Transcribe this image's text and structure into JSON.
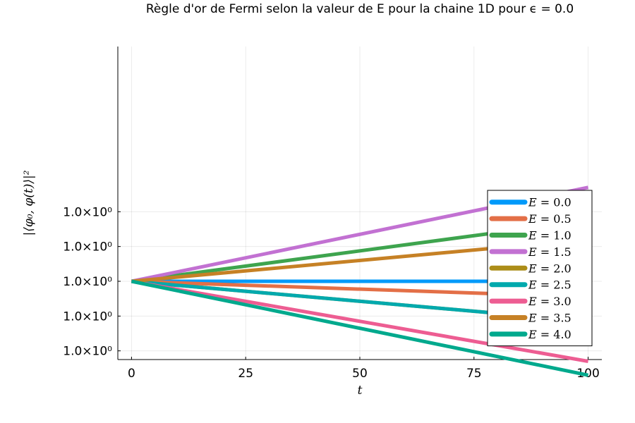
{
  "chart_data": {
    "type": "line",
    "title": "Règle d'or de Fermi selon la valeur de E pour la chaine 1D pour ϵ = 0.0",
    "xlabel": "t",
    "ylabel": "|⟨φ₀, φ(t)⟩|²",
    "xlim": [
      -3,
      103
    ],
    "ylim": [
      0.955,
      1.135
    ],
    "x_ticks": [
      0,
      25,
      50,
      75,
      100
    ],
    "y_ticks": [
      0.96,
      0.98,
      1.0,
      1.02,
      1.04
    ],
    "y_tick_labels": [
      "1.0×10⁰",
      "1.0×10⁰",
      "1.0×10⁰",
      "1.0×10⁰",
      "1.0×10⁰"
    ],
    "grid": true,
    "legend_position": "bottom-right",
    "series": [
      {
        "name": "E = 0.0",
        "color": "#009AFA",
        "x": [
          0,
          100
        ],
        "y": [
          1.0,
          1.0
        ]
      },
      {
        "name": "E = 0.5",
        "color": "#E36F47",
        "x": [
          0,
          100
        ],
        "y": [
          1.0,
          0.991
        ]
      },
      {
        "name": "E = 1.0",
        "color": "#3EA44E",
        "x": [
          0,
          100
        ],
        "y": [
          1.0,
          1.035
        ]
      },
      {
        "name": "E = 1.5",
        "color": "#C271D2",
        "x": [
          0,
          100
        ],
        "y": [
          1.0,
          1.054
        ]
      },
      {
        "name": "E = 2.0",
        "color": "#AC8D18",
        "x": [
          0,
          100
        ],
        "y": [
          1.0,
          0.977
        ]
      },
      {
        "name": "E = 2.5",
        "color": "#00A9AD",
        "x": [
          0,
          100
        ],
        "y": [
          1.0,
          0.977
        ]
      },
      {
        "name": "E = 3.0",
        "color": "#ED5D92",
        "x": [
          0,
          100
        ],
        "y": [
          1.0,
          0.954
        ]
      },
      {
        "name": "E = 3.5",
        "color": "#C68125",
        "x": [
          0,
          100
        ],
        "y": [
          1.0,
          1.024
        ]
      },
      {
        "name": "E = 4.0",
        "color": "#00A98D",
        "x": [
          0,
          100
        ],
        "y": [
          1.0,
          0.946
        ]
      }
    ],
    "legend": [
      {
        "var": "E",
        "eq": " = 0.0",
        "color": "#009AFA"
      },
      {
        "var": "E",
        "eq": " = 0.5",
        "color": "#E36F47"
      },
      {
        "var": "E",
        "eq": " = 1.0",
        "color": "#3EA44E"
      },
      {
        "var": "E",
        "eq": " = 1.5",
        "color": "#C271D2"
      },
      {
        "var": "E",
        "eq": " = 2.0",
        "color": "#AC8D18"
      },
      {
        "var": "E",
        "eq": " = 2.5",
        "color": "#00A9AD"
      },
      {
        "var": "E",
        "eq": " = 3.0",
        "color": "#ED5D92"
      },
      {
        "var": "E",
        "eq": " = 3.5",
        "color": "#C68125"
      },
      {
        "var": "E",
        "eq": " = 4.0",
        "color": "#00A98D"
      }
    ]
  }
}
